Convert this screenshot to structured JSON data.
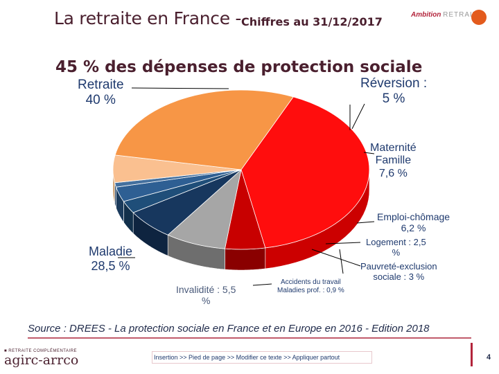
{
  "header": {
    "title": "La retraite en France -",
    "date_label": "Chiffres au 31/12/2017",
    "brand_word": "Ambition",
    "brand_word2": "RETRAITE",
    "accent_color": "#b3243b"
  },
  "chart_data": {
    "type": "pie",
    "title": "45 % des dépenses de protection sociale",
    "slices": [
      {
        "category": "Retraite",
        "value": 40.0,
        "label_lines": [
          "Retraite",
          "40 %"
        ],
        "color": "#ff0d0d",
        "side": "#cc0000"
      },
      {
        "category": "Réversion",
        "value": 5.0,
        "label_lines": [
          "Réversion :",
          "5 %"
        ],
        "color": "#c80000",
        "side": "#8a0000"
      },
      {
        "category": "Maternité Famille",
        "value": 7.6,
        "label_lines": [
          "Maternité",
          "Famille",
          "7,6 %"
        ],
        "color": "#a6a6a6",
        "side": "#6e6e6e"
      },
      {
        "category": "Emploi-chômage",
        "value": 6.2,
        "label_lines": [
          "Emploi-chômage",
          "6,2 %"
        ],
        "color": "#17375e",
        "side": "#0e2440"
      },
      {
        "category": "Logement",
        "value": 2.5,
        "label_lines": [
          "Logement : 2,5",
          "%"
        ],
        "color": "#1f4e79",
        "side": "#12304b"
      },
      {
        "category": "Pauvreté-exclusion",
        "value": 3.0,
        "label_lines": [
          "Pauvreté-exclusion",
          "sociale : 3 %"
        ],
        "color": "#2e5f93",
        "side": "#1b3b5c"
      },
      {
        "category": "Accidents du travail Maladies prof.",
        "value": 0.9,
        "label_lines": [
          "Accidents du travail",
          "Maladies prof. : 0,9 %"
        ],
        "color": "#44709e",
        "side": "#2a4866"
      },
      {
        "category": "Invalidité",
        "value": 5.5,
        "label_lines": [
          "Invalidité : 5,5",
          "%"
        ],
        "color": "#fac090",
        "side": "#c9955f"
      },
      {
        "category": "Maladie",
        "value": 28.5,
        "label_lines": [
          "Maladie",
          "28,5 %"
        ],
        "color": "#f79646",
        "side": "#9e4f15"
      }
    ],
    "thin_slice": {
      "category": "Maternité Famille (bordure)",
      "color": "#7f7f7f"
    }
  },
  "source": {
    "prefix": "Source",
    "text": " : DREES - La protection sociale en France et en Europe en 2016 - Edition 2018"
  },
  "footer": {
    "instruction": "Insertion >> Pied de page >> Modifier ce texte >> Appliquer partout",
    "logo_top": "■ RETRAITE COMPLÉMENTAIRE",
    "logo_main": "agirc-arrco",
    "page_number": "4"
  }
}
